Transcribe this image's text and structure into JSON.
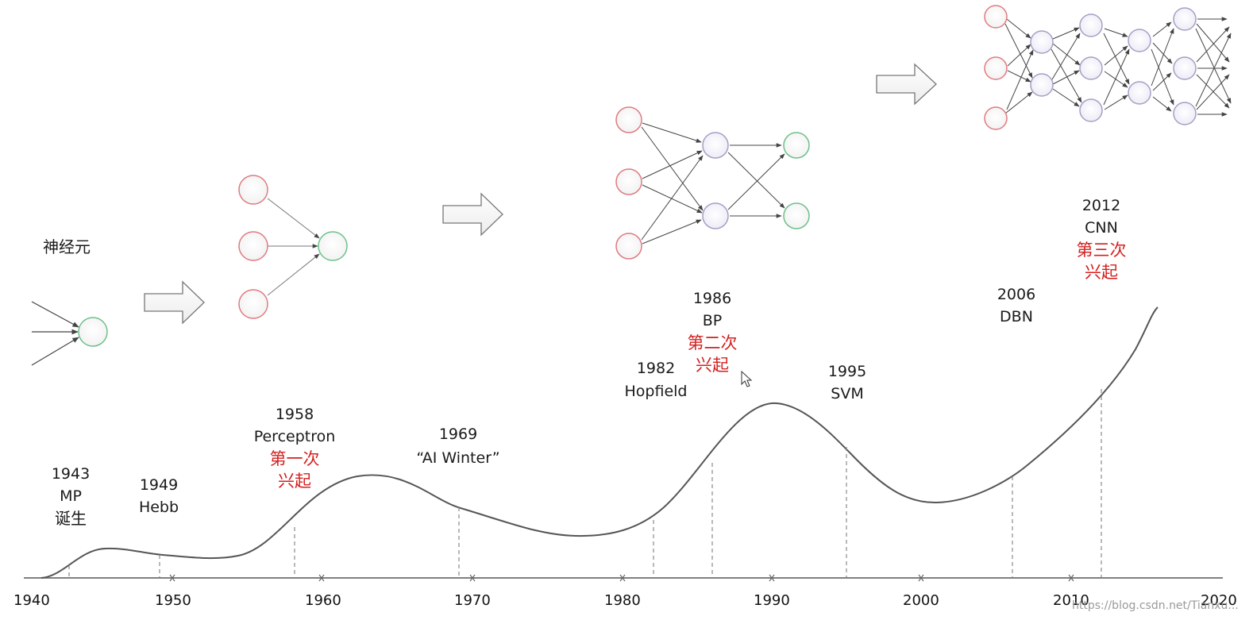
{
  "diagram": {
    "neuron_label": "神经元",
    "axis_years": [
      "1940",
      "1950",
      "1960",
      "1970",
      "1980",
      "1990",
      "2000",
      "2010",
      "2020"
    ],
    "events": [
      {
        "year": "1943",
        "name": "MP",
        "note": "诞生",
        "note_color": "#1a1a1a"
      },
      {
        "year": "1949",
        "name": "Hebb",
        "note": "",
        "note_color": ""
      },
      {
        "year": "1958",
        "name": "Perceptron",
        "note": "第一次兴起",
        "note_line1": "第一次",
        "note_line2": "兴起",
        "note_color": "#d42020"
      },
      {
        "year": "1969",
        "name": "“AI Winter”",
        "note": "",
        "note_color": ""
      },
      {
        "year": "1982",
        "name": "Hopfield",
        "note": "",
        "note_color": ""
      },
      {
        "year": "1986",
        "name": "BP",
        "note_line1": "第二次",
        "note_line2": "兴起",
        "note_color": "#d42020"
      },
      {
        "year": "1995",
        "name": "SVM",
        "note": "",
        "note_color": ""
      },
      {
        "year": "2006",
        "name": "DBN",
        "note": "",
        "note_color": ""
      },
      {
        "year": "2012",
        "name": "CNN",
        "note_line1": "第三次",
        "note_line2": "兴起",
        "note_color": "#d42020"
      }
    ],
    "colors": {
      "input_node": "#e07a80",
      "output_node": "#6cc08b",
      "hidden_node": "#a59fc4",
      "curve": "#555555"
    },
    "watermark": "https://blog.csdn.net/Tianxu..."
  }
}
